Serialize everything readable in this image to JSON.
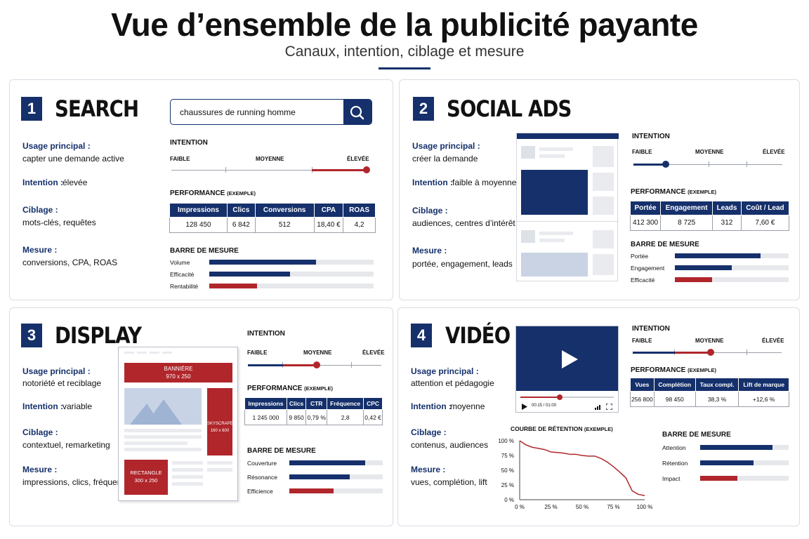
{
  "page": {
    "title": "Vue d’ensemble de la publicité payante",
    "subtitle": "Canaux, intention, ciblage et mesure"
  },
  "colors": {
    "navy": "#15306b",
    "red": "#b0262b",
    "track": "#9aa0a8",
    "bar_bg": "#e6e8ec"
  },
  "panels": {
    "search": {
      "number": "1",
      "title": "SEARCH",
      "search_query": "chaussures de running homme",
      "search_icon": "search-icon",
      "usage_label": "Usage principal :",
      "usage_value": "capter une demande active",
      "intention_label": "Intention :",
      "intention_value": "élevée",
      "ciblage_label": "Ciblage :",
      "ciblage_value": "mots-clés, requêtes",
      "mesure_label": "Mesure :",
      "mesure_value": "conversions, CPA, ROAS",
      "intention_heading": "INTENTION",
      "scale": [
        "FAIBLE",
        "MOYENNE",
        "ÉLEVÉE"
      ],
      "intention_level": 1.0,
      "performance_heading": "PERFORMANCE",
      "performance_note": "(EXEMPLE)",
      "table_headers": [
        "Impressions",
        "Clics",
        "Conversions",
        "CPA",
        "ROAS"
      ],
      "table_values": [
        "128 450",
        "6 842",
        "512",
        "18,40 €",
        "4,2"
      ],
      "barre_heading": "BARRE DE MESURE",
      "bars": [
        {
          "label": "Volume",
          "value": 0.65,
          "color": "navy"
        },
        {
          "label": "Efficacité",
          "value": 0.49,
          "color": "navy"
        },
        {
          "label": "Rentabilité",
          "value": 0.29,
          "color": "red"
        }
      ]
    },
    "social": {
      "number": "2",
      "title": "SOCIAL ADS",
      "usage_label": "Usage principal :",
      "usage_value": "créer la demande",
      "intention_label": "Intention :",
      "intention_value": "faible à moyenne",
      "ciblage_label": "Ciblage :",
      "ciblage_value": "audiences, centres d’intérêt",
      "mesure_label": "Mesure :",
      "mesure_value": "portée, engagement, leads",
      "intention_heading": "INTENTION",
      "scale": [
        "FAIBLE",
        "MOYENNE",
        "ÉLEVÉE"
      ],
      "intention_level": 0.23,
      "performance_heading": "PERFORMANCE",
      "performance_note": "(EXEMPLE)",
      "table_headers": [
        "Portée",
        "Engagement",
        "Leads",
        "Coût / Lead"
      ],
      "table_values": [
        "412 300",
        "8 725",
        "312",
        "7,60 €"
      ],
      "barre_heading": "BARRE DE MESURE",
      "bars": [
        {
          "label": "Portée",
          "value": 0.75,
          "color": "navy"
        },
        {
          "label": "Engagement",
          "value": 0.5,
          "color": "navy"
        },
        {
          "label": "Efficacité",
          "value": 0.33,
          "color": "red"
        }
      ]
    },
    "display": {
      "number": "3",
      "title": "DISPLAY",
      "usage_label": "Usage principal :",
      "usage_value": "notoriété et reciblage",
      "intention_label": "Intention :",
      "intention_value": "variable",
      "ciblage_label": "Ciblage :",
      "ciblage_value": "contextuel, remarketing",
      "mesure_label": "Mesure :",
      "mesure_value": "impressions, clics, fréquence",
      "banner_label": "BANNIÈRE",
      "banner_size": "970 x 250",
      "skyscraper_label": "SKYSCRAPER",
      "skyscraper_size": "160 x 600",
      "rectangle_label": "RECTANGLE",
      "rectangle_size": "300 x 250",
      "intention_heading": "INTENTION",
      "scale": [
        "FAIBLE",
        "MOYENNE",
        "ÉLEVÉE"
      ],
      "intention_level": 0.5,
      "performance_heading": "PERFORMANCE",
      "performance_note": "(EXEMPLE)",
      "table_headers": [
        "Impressions",
        "Clics",
        "CTR",
        "Fréquence",
        "CPC"
      ],
      "table_values": [
        "1 245 000",
        "9 850",
        "0,79 %",
        "2,8",
        "0,42 €"
      ],
      "barre_heading": "BARRE DE MESURE",
      "bars": [
        {
          "label": "Couverture",
          "value": 0.81,
          "color": "navy"
        },
        {
          "label": "Résonance",
          "value": 0.65,
          "color": "navy"
        },
        {
          "label": "Efficience",
          "value": 0.47,
          "color": "red"
        }
      ]
    },
    "video": {
      "number": "4",
      "title": "VIDÉO",
      "player_time": "00:15 / 01:00",
      "player_progress": 0.42,
      "usage_label": "Usage principal :",
      "usage_value": "attention et pédagogie",
      "intention_label": "Intention :",
      "intention_value": "moyenne",
      "ciblage_label": "Ciblage :",
      "ciblage_value": "contenus, audiences",
      "mesure_label": "Mesure :",
      "mesure_value": "vues, complétion, lift",
      "intention_heading": "INTENTION",
      "scale": [
        "FAIBLE",
        "MOYENNE",
        "ÉLEVÉE"
      ],
      "intention_level": 0.5,
      "performance_heading": "PERFORMANCE",
      "performance_note": "(EXEMPLE)",
      "table_headers": [
        "Vues",
        "Complétion",
        "Taux compl.",
        "Lift de marque"
      ],
      "table_values": [
        "256 800",
        "98 450",
        "38,3 %",
        "+12,6 %"
      ],
      "barre_heading": "BARRE DE MESURE",
      "bars": [
        {
          "label": "Attention",
          "value": 0.82,
          "color": "navy"
        },
        {
          "label": "Rétention",
          "value": 0.6,
          "color": "navy"
        },
        {
          "label": "Impact",
          "value": 0.42,
          "color": "red"
        }
      ]
    }
  },
  "chart_data": {
    "type": "line",
    "title": "COURBE DE RÉTENTION",
    "title_note": "(EXEMPLE)",
    "x": [
      0,
      5,
      10,
      15,
      20,
      25,
      30,
      35,
      40,
      45,
      50,
      55,
      60,
      65,
      70,
      75,
      80,
      85,
      90,
      95,
      100
    ],
    "series": [
      {
        "values": [
          100,
          93,
          89,
          87,
          85,
          81,
          80,
          79,
          77,
          77,
          75,
          74,
          74,
          70,
          64,
          56,
          47,
          37,
          15,
          9,
          7
        ]
      }
    ],
    "xticks": [
      "0 %",
      "25 %",
      "50 %",
      "75 %",
      "100 %"
    ],
    "yticks": [
      "0 %",
      "25 %",
      "50 %",
      "75 %",
      "100 %"
    ],
    "xlim": [
      0,
      100
    ],
    "ylim": [
      0,
      100
    ],
    "grid": false
  }
}
